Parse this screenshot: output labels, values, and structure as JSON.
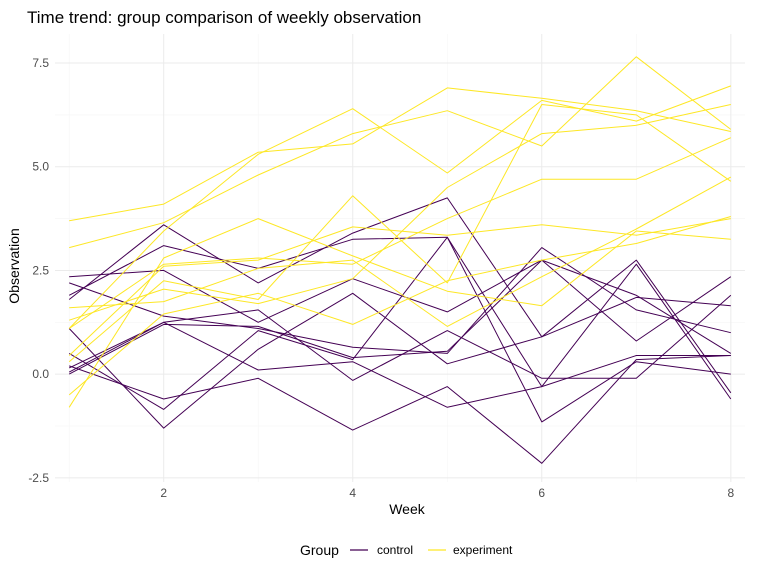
{
  "chart_data": {
    "type": "line",
    "title": "Time trend: group comparison of weekly observation",
    "xlabel": "Week",
    "ylabel": "Observation",
    "xlim": [
      0.85,
      8.15
    ],
    "ylim": [
      -2.6,
      8.2
    ],
    "x_ticks": [
      2,
      4,
      6,
      8
    ],
    "y_ticks": [
      -2.5,
      0.0,
      2.5,
      5.0,
      7.5
    ],
    "y_tick_labels": [
      "-2.5",
      "0.0",
      "2.5",
      "5.0",
      "7.5"
    ],
    "grid": true,
    "legend": {
      "title": "Group",
      "position": "bottom",
      "entries": [
        {
          "label": "control",
          "color": "#440154"
        },
        {
          "label": "experiment",
          "color": "#fde725"
        }
      ]
    },
    "x": [
      1,
      2,
      3,
      4,
      5,
      6,
      7,
      8
    ],
    "series": [
      {
        "group": "control",
        "color": "#440154",
        "values": [
          0.2,
          -0.6,
          -0.1,
          -1.35,
          -0.3,
          -2.15,
          0.35,
          0.45
        ]
      },
      {
        "group": "control",
        "color": "#440154",
        "values": [
          1.1,
          -1.3,
          0.6,
          1.95,
          0.25,
          0.9,
          2.75,
          -0.45
        ]
      },
      {
        "group": "control",
        "color": "#440154",
        "values": [
          2.35,
          2.5,
          1.25,
          2.3,
          1.5,
          2.75,
          0.8,
          2.35
        ]
      },
      {
        "group": "control",
        "color": "#440154",
        "values": [
          1.8,
          3.6,
          2.2,
          3.4,
          4.25,
          0.9,
          1.85,
          1.65
        ]
      },
      {
        "group": "control",
        "color": "#440154",
        "values": [
          0.0,
          1.2,
          1.15,
          0.4,
          0.55,
          2.75,
          1.9,
          0.5
        ]
      },
      {
        "group": "control",
        "color": "#440154",
        "values": [
          0.5,
          -0.85,
          1.05,
          0.35,
          3.3,
          -1.15,
          0.3,
          0.0
        ]
      },
      {
        "group": "control",
        "color": "#440154",
        "values": [
          0.05,
          1.25,
          1.55,
          -0.15,
          1.05,
          -0.1,
          -0.1,
          1.9
        ]
      },
      {
        "group": "control",
        "color": "#440154",
        "values": [
          2.2,
          1.4,
          1.1,
          0.65,
          0.5,
          3.05,
          1.55,
          1.0
        ]
      },
      {
        "group": "control",
        "color": "#440154",
        "values": [
          1.9,
          3.1,
          2.55,
          3.25,
          3.3,
          -0.3,
          2.65,
          -0.6
        ]
      },
      {
        "group": "control",
        "color": "#440154",
        "values": [
          0.15,
          1.25,
          0.1,
          0.3,
          -0.8,
          -0.3,
          0.45,
          0.45
        ]
      },
      {
        "group": "experiment",
        "color": "#fde725",
        "values": [
          3.7,
          4.1,
          5.35,
          5.55,
          6.9,
          6.65,
          6.35,
          5.85
        ]
      },
      {
        "group": "experiment",
        "color": "#fde725",
        "values": [
          3.05,
          3.65,
          4.8,
          5.8,
          6.35,
          5.5,
          7.65,
          5.9
        ]
      },
      {
        "group": "experiment",
        "color": "#fde725",
        "values": [
          1.1,
          3.45,
          5.3,
          6.4,
          4.85,
          6.6,
          6.1,
          6.95
        ]
      },
      {
        "group": "experiment",
        "color": "#fde725",
        "values": [
          1.3,
          2.05,
          1.7,
          2.3,
          4.5,
          5.8,
          6.0,
          6.5
        ]
      },
      {
        "group": "experiment",
        "color": "#fde725",
        "values": [
          1.1,
          2.65,
          2.8,
          2.65,
          3.75,
          4.7,
          4.7,
          5.7
        ]
      },
      {
        "group": "experiment",
        "color": "#fde725",
        "values": [
          0.3,
          2.25,
          1.8,
          4.3,
          2.2,
          6.5,
          6.25,
          4.65
        ]
      },
      {
        "group": "experiment",
        "color": "#fde725",
        "values": [
          -0.8,
          2.8,
          3.75,
          2.85,
          2.0,
          1.65,
          3.45,
          3.25
        ]
      },
      {
        "group": "experiment",
        "color": "#fde725",
        "values": [
          0.45,
          2.6,
          2.75,
          3.55,
          3.35,
          3.6,
          3.35,
          3.75
        ]
      },
      {
        "group": "experiment",
        "color": "#fde725",
        "values": [
          -0.5,
          1.45,
          1.95,
          1.2,
          2.25,
          2.75,
          3.15,
          3.8
        ]
      },
      {
        "group": "experiment",
        "color": "#fde725",
        "values": [
          1.6,
          1.75,
          2.55,
          2.75,
          1.15,
          2.35,
          3.5,
          4.75
        ]
      }
    ]
  }
}
